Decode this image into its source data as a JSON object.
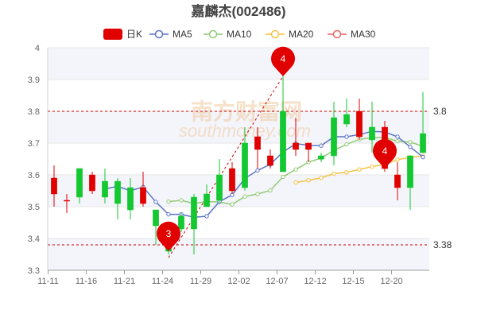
{
  "chart_data": {
    "type": "candlestick",
    "title": "嘉麟杰(002486)",
    "legend": [
      {
        "name": "日K",
        "color": "#e00000",
        "style": "box"
      },
      {
        "name": "MA5",
        "color": "#5b73c6",
        "style": "line"
      },
      {
        "name": "MA10",
        "color": "#91cc75",
        "style": "line"
      },
      {
        "name": "MA20",
        "color": "#f5c140",
        "style": "line"
      },
      {
        "name": "MA30",
        "color": "#ee6666",
        "style": "line"
      }
    ],
    "legend_position": "top-center",
    "ylim": [
      3.3,
      4.0
    ],
    "y_ticks": [
      "3.3",
      "3.4",
      "3.5",
      "3.6",
      "3.7",
      "3.8",
      "3.9",
      "4"
    ],
    "x_ticks": [
      {
        "index": 0,
        "label": "11-11"
      },
      {
        "index": 3,
        "label": "11-16"
      },
      {
        "index": 6,
        "label": "11-21"
      },
      {
        "index": 9,
        "label": "11-24"
      },
      {
        "index": 12,
        "label": "11-29"
      },
      {
        "index": 15,
        "label": "12-02"
      },
      {
        "index": 18,
        "label": "12-07"
      },
      {
        "index": 21,
        "label": "12-12"
      },
      {
        "index": 24,
        "label": "12-15"
      },
      {
        "index": 27,
        "label": "12-20"
      }
    ],
    "candles": [
      {
        "o": 3.54,
        "c": 3.59,
        "h": 3.63,
        "l": 3.5
      },
      {
        "o": 3.52,
        "c": 3.52,
        "h": 3.54,
        "l": 3.48
      },
      {
        "o": 3.62,
        "c": 3.53,
        "h": 3.62,
        "l": 3.51
      },
      {
        "o": 3.55,
        "c": 3.6,
        "h": 3.61,
        "l": 3.54
      },
      {
        "o": 3.58,
        "c": 3.53,
        "h": 3.62,
        "l": 3.51
      },
      {
        "o": 3.58,
        "c": 3.51,
        "h": 3.59,
        "l": 3.46
      },
      {
        "o": 3.56,
        "c": 3.49,
        "h": 3.59,
        "l": 3.46
      },
      {
        "o": 3.51,
        "c": 3.56,
        "h": 3.61,
        "l": 3.5
      },
      {
        "o": 3.49,
        "c": 3.44,
        "h": 3.49,
        "l": 3.38
      },
      {
        "o": 3.44,
        "c": 3.36,
        "h": 3.44,
        "l": 3.35
      },
      {
        "o": 3.47,
        "c": 3.43,
        "h": 3.48,
        "l": 3.42
      },
      {
        "o": 3.53,
        "c": 3.43,
        "h": 3.54,
        "l": 3.35
      },
      {
        "o": 3.54,
        "c": 3.5,
        "h": 3.57,
        "l": 3.5
      },
      {
        "o": 3.6,
        "c": 3.52,
        "h": 3.65,
        "l": 3.51
      },
      {
        "o": 3.55,
        "c": 3.62,
        "h": 3.64,
        "l": 3.54
      },
      {
        "o": 3.7,
        "c": 3.56,
        "h": 3.75,
        "l": 3.55
      },
      {
        "o": 3.68,
        "c": 3.72,
        "h": 3.75,
        "l": 3.62
      },
      {
        "o": 3.63,
        "c": 3.66,
        "h": 3.68,
        "l": 3.62
      },
      {
        "o": 3.8,
        "c": 3.61,
        "h": 3.91,
        "l": 3.61
      },
      {
        "o": 3.68,
        "c": 3.7,
        "h": 3.78,
        "l": 3.66
      },
      {
        "o": 3.68,
        "c": 3.7,
        "h": 3.7,
        "l": 3.64
      },
      {
        "o": 3.66,
        "c": 3.65,
        "h": 3.67,
        "l": 3.64
      },
      {
        "o": 3.78,
        "c": 3.66,
        "h": 3.83,
        "l": 3.63
      },
      {
        "o": 3.79,
        "c": 3.76,
        "h": 3.84,
        "l": 3.75
      },
      {
        "o": 3.72,
        "c": 3.8,
        "h": 3.84,
        "l": 3.71
      },
      {
        "o": 3.75,
        "c": 3.71,
        "h": 3.83,
        "l": 3.67
      },
      {
        "o": 3.62,
        "c": 3.75,
        "h": 3.77,
        "l": 3.61
      },
      {
        "o": 3.56,
        "c": 3.6,
        "h": 3.64,
        "l": 3.52
      },
      {
        "o": 3.66,
        "c": 3.56,
        "h": 3.66,
        "l": 3.49
      },
      {
        "o": 3.73,
        "c": 3.67,
        "h": 3.86,
        "l": 3.67
      }
    ],
    "ma5": [
      null,
      null,
      null,
      null,
      3.556,
      3.564,
      3.55,
      3.562,
      3.515,
      3.476,
      3.476,
      3.467,
      3.47,
      3.516,
      3.537,
      3.589,
      3.614,
      3.633,
      3.672,
      3.698,
      3.693,
      3.692,
      3.72,
      3.72,
      3.727,
      3.737,
      3.735,
      3.72,
      3.688,
      3.656
    ],
    "ma10": [
      null,
      null,
      null,
      null,
      null,
      null,
      null,
      null,
      null,
      3.516,
      3.52,
      3.51,
      3.516,
      3.515,
      3.507,
      3.532,
      3.54,
      3.551,
      3.594,
      3.617,
      3.64,
      3.653,
      3.677,
      3.696,
      3.712,
      3.717,
      3.718,
      3.706,
      3.703,
      3.69
    ],
    "ma20": [
      null,
      null,
      null,
      null,
      null,
      null,
      null,
      null,
      null,
      null,
      null,
      null,
      null,
      null,
      null,
      null,
      null,
      null,
      null,
      3.576,
      3.583,
      3.591,
      3.604,
      3.608,
      3.617,
      3.626,
      3.633,
      3.648,
      3.655,
      3.66
    ],
    "ma30": [],
    "ref_lines": [
      {
        "value": 3.8,
        "label": "3.8"
      },
      {
        "value": 3.38,
        "label": "3.38"
      }
    ],
    "markers": [
      {
        "index": 9,
        "value": 3.36,
        "label": "3"
      },
      {
        "index": 18,
        "value": 3.91,
        "label": "4"
      },
      {
        "index": 26,
        "value": 3.62,
        "label": "4"
      }
    ],
    "trend_line": {
      "from_index": 9,
      "from_value": 3.34,
      "to_index": 18,
      "to_value": 3.91
    },
    "up_color": "#e00000",
    "down_color": "#14c832",
    "watermark": [
      "南方财富网",
      "southmoney.com"
    ]
  }
}
